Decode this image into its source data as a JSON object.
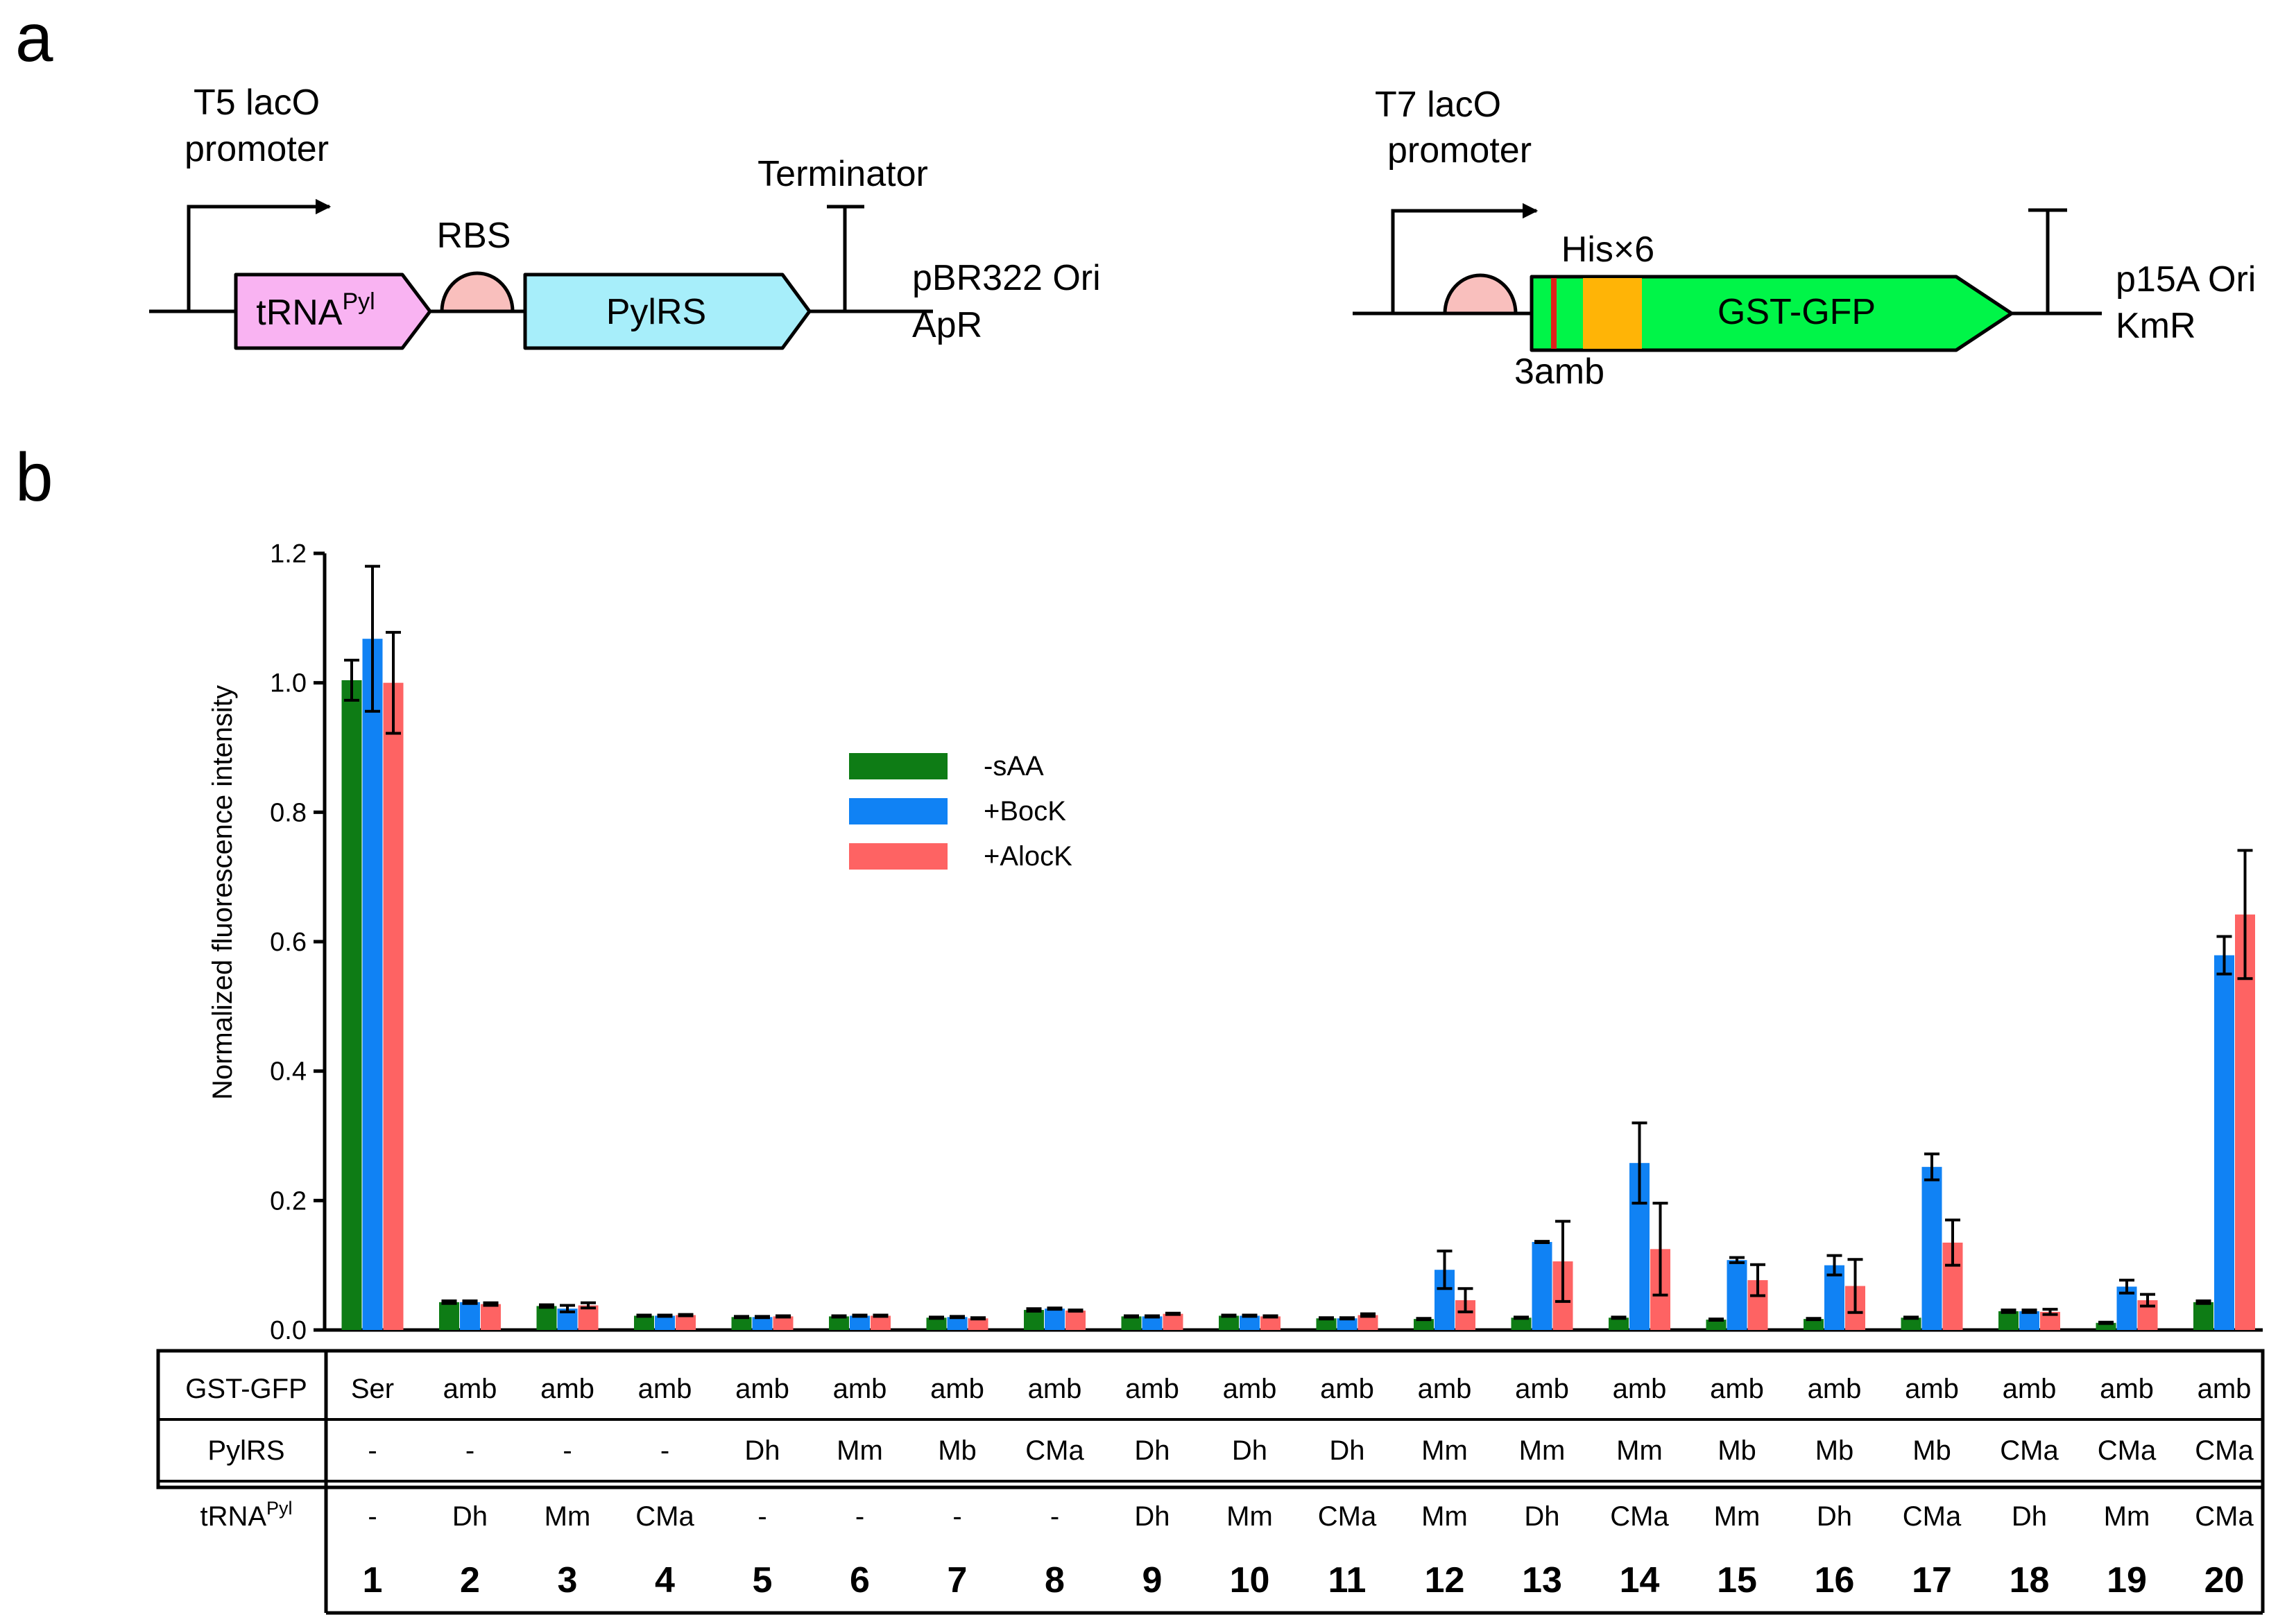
{
  "panel_a": {
    "label": "a",
    "construct1": {
      "promoter_line1": "T5 lacO",
      "promoter_line2": "promoter",
      "rbs": "RBS",
      "terminator": "Terminator",
      "trna_main": "tRNA",
      "trna_sup": "Pyl",
      "pylrs": "PylRS",
      "origin": "pBR322 Ori",
      "resistance": "ApR",
      "colors": {
        "trna": "#F9B3F2",
        "rbs": "#F9BFBD",
        "pylrs": "#A7EEFA"
      }
    },
    "construct2": {
      "promoter_line1": "T7 lacO",
      "promoter_line2": "promoter",
      "his_tag": "His×6",
      "amber": "3amb",
      "gene": "GST-GFP",
      "origin": "p15A Ori",
      "resistance": "KmR",
      "colors": {
        "gene": "#00F548",
        "his": "#FFB406",
        "amber_mark": "#E0201B",
        "rbs": "#F9BFBD"
      }
    }
  },
  "panel_b": {
    "label": "b",
    "table": {
      "row_labels": {
        "gst_gfp": "GST-GFP",
        "pylrs": "PylRS",
        "trna_main": "tRNA",
        "trna_sup": "Pyl"
      },
      "gst_gfp": [
        "Ser",
        "amb",
        "amb",
        "amb",
        "amb",
        "amb",
        "amb",
        "amb",
        "amb",
        "amb",
        "amb",
        "amb",
        "amb",
        "amb",
        "amb",
        "amb",
        "amb",
        "amb",
        "amb",
        "amb"
      ],
      "pylrs": [
        "-",
        "-",
        "-",
        "-",
        "Dh",
        "Mm",
        "Mb",
        "CMa",
        "Dh",
        "Dh",
        "Dh",
        "Mm",
        "Mm",
        "Mm",
        "Mb",
        "Mb",
        "Mb",
        "CMa",
        "CMa",
        "CMa"
      ],
      "trna": [
        "-",
        "Dh",
        "Mm",
        "CMa",
        "-",
        "-",
        "-",
        "-",
        "Dh",
        "Mm",
        "CMa",
        "Mm",
        "Dh",
        "CMa",
        "Mm",
        "Dh",
        "CMa",
        "Dh",
        "Mm",
        "CMa"
      ],
      "numbers": [
        "1",
        "2",
        "3",
        "4",
        "5",
        "6",
        "7",
        "8",
        "9",
        "10",
        "11",
        "12",
        "13",
        "14",
        "15",
        "16",
        "17",
        "18",
        "19",
        "20"
      ]
    }
  },
  "chart_data": {
    "type": "bar",
    "title": "",
    "xlabel": "",
    "ylabel": "Normalized fluorescence intensity",
    "ylim": [
      0,
      1.2
    ],
    "yticks": [
      "0.0",
      "0.2",
      "0.4",
      "0.6",
      "0.8",
      "1.0",
      "1.2"
    ],
    "categories": [
      "1",
      "2",
      "3",
      "4",
      "5",
      "6",
      "7",
      "8",
      "9",
      "10",
      "11",
      "12",
      "13",
      "14",
      "15",
      "16",
      "17",
      "18",
      "19",
      "20"
    ],
    "legend_position": "upper-center",
    "series": [
      {
        "name": "-sAA",
        "color": "#0E7C15",
        "values": [
          1.004,
          0.043,
          0.037,
          0.022,
          0.02,
          0.021,
          0.019,
          0.031,
          0.021,
          0.022,
          0.018,
          0.017,
          0.019,
          0.019,
          0.016,
          0.017,
          0.019,
          0.029,
          0.011,
          0.043
        ],
        "errors": [
          0.031,
          0.002,
          0.002,
          0.001,
          0.001,
          0.001,
          0.001,
          0.002,
          0.001,
          0.001,
          0.001,
          0.001,
          0.001,
          0.001,
          0.001,
          0.001,
          0.001,
          0.002,
          0.001,
          0.002
        ]
      },
      {
        "name": "+BocK",
        "color": "#1082F4",
        "values": [
          1.068,
          0.043,
          0.033,
          0.022,
          0.02,
          0.022,
          0.02,
          0.033,
          0.021,
          0.022,
          0.018,
          0.093,
          0.136,
          0.258,
          0.108,
          0.1,
          0.252,
          0.029,
          0.067,
          0.579
        ],
        "errors": [
          0.112,
          0.002,
          0.005,
          0.001,
          0.001,
          0.001,
          0.001,
          0.001,
          0.001,
          0.001,
          0.001,
          0.029,
          0.001,
          0.062,
          0.004,
          0.015,
          0.02,
          0.002,
          0.01,
          0.029
        ]
      },
      {
        "name": "+AlocK",
        "color": "#FE6363",
        "values": [
          1.0,
          0.04,
          0.038,
          0.023,
          0.021,
          0.022,
          0.018,
          0.03,
          0.025,
          0.021,
          0.023,
          0.046,
          0.106,
          0.125,
          0.077,
          0.068,
          0.135,
          0.028,
          0.046,
          0.642
        ],
        "errors": [
          0.078,
          0.002,
          0.004,
          0.001,
          0.001,
          0.001,
          0.001,
          0.001,
          0.001,
          0.001,
          0.002,
          0.018,
          0.062,
          0.071,
          0.024,
          0.041,
          0.035,
          0.004,
          0.009,
          0.099
        ]
      }
    ]
  }
}
